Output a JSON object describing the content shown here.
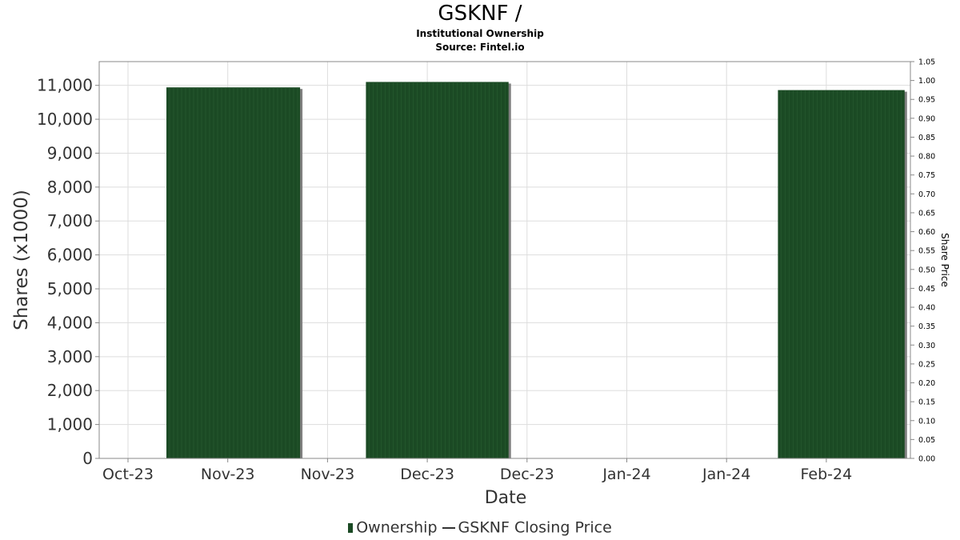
{
  "header": {
    "title": "GSKNF /",
    "subtitle": "Institutional Ownership",
    "source": "Source: Fintel.io"
  },
  "legend": {
    "ownership": "Ownership",
    "price": "GSKNF Closing Price"
  },
  "colors": {
    "bar": "#1b4a24",
    "bar_shadow": "#7f7f7f",
    "grid": "#dddddd",
    "axis": "#888888"
  },
  "chart_data": {
    "type": "bar",
    "title": "GSKNF /",
    "xlabel": "Date",
    "ylabel": "Shares (x1000)",
    "y2label": "Share Price",
    "x_ticks": [
      "Oct-23",
      "Nov-23",
      "Nov-23",
      "Dec-23",
      "Dec-23",
      "Jan-24",
      "Jan-24",
      "Feb-24"
    ],
    "y_ticks": [
      "0",
      "1,000",
      "2,000",
      "3,000",
      "4,000",
      "5,000",
      "6,000",
      "7,000",
      "8,000",
      "9,000",
      "10,000",
      "11,000"
    ],
    "y2_ticks": [
      "0.00",
      "0.05",
      "0.10",
      "0.15",
      "0.20",
      "0.25",
      "0.30",
      "0.35",
      "0.40",
      "0.45",
      "0.50",
      "0.55",
      "0.60",
      "0.65",
      "0.70",
      "0.75",
      "0.80",
      "0.85",
      "0.90",
      "0.95",
      "1.00",
      "1.05"
    ],
    "ylim": [
      0,
      11700
    ],
    "y2lim": [
      0,
      1.05
    ],
    "grid": true,
    "legend_position": "bottom",
    "series": [
      {
        "name": "Ownership",
        "bars": [
          {
            "start": 0.385,
            "end": 1.725,
            "value": 10940
          },
          {
            "start": 2.385,
            "end": 3.815,
            "value": 11100
          },
          {
            "start": 6.515,
            "end": 7.785,
            "value": 10860
          }
        ]
      },
      {
        "name": "GSKNF Closing Price",
        "values": []
      }
    ]
  }
}
